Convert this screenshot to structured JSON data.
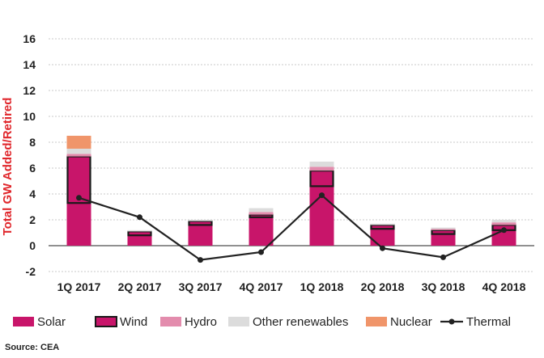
{
  "chart_data": {
    "type": "bar",
    "stacked": true,
    "ylabel": "Total GW Added/Retired",
    "ylim": [
      -2,
      16
    ],
    "yticks": [
      16,
      14,
      12,
      10,
      8,
      6,
      4,
      2,
      0,
      -2
    ],
    "grid": true,
    "legend_position": "bottom",
    "categories": [
      "1Q 2017",
      "2Q 2017",
      "3Q 2017",
      "4Q 2017",
      "1Q 2018",
      "2Q 2018",
      "3Q 2018",
      "4Q 2018"
    ],
    "series": [
      {
        "name": "Solar",
        "kind": "bar",
        "color": "#c8156a",
        "values": [
          3.3,
          0.8,
          1.6,
          2.2,
          4.6,
          1.3,
          0.9,
          1.2
        ]
      },
      {
        "name": "Wind",
        "kind": "bar",
        "color": "#c8156a",
        "outlined": true,
        "values": [
          3.6,
          0.3,
          0.3,
          0.2,
          1.2,
          0.3,
          0.3,
          0.4
        ]
      },
      {
        "name": "Hydro",
        "kind": "bar",
        "color": "#e38cad",
        "values": [
          0.2,
          0.0,
          0.0,
          0.2,
          0.3,
          0.0,
          0.1,
          0.2
        ]
      },
      {
        "name": "Other renewables",
        "kind": "bar",
        "color": "#dcdcdc",
        "values": [
          0.4,
          0.1,
          0.1,
          0.3,
          0.4,
          0.1,
          0.1,
          0.2
        ]
      },
      {
        "name": "Nuclear",
        "kind": "bar",
        "color": "#f0956a",
        "values": [
          1.0,
          0,
          0,
          0,
          0,
          0,
          0,
          0
        ]
      },
      {
        "name": "Thermal",
        "kind": "line",
        "color": "#222222",
        "values": [
          3.7,
          2.2,
          -1.1,
          -0.5,
          3.9,
          -0.2,
          -0.9,
          1.2
        ]
      }
    ]
  },
  "source_text": "Source: CEA",
  "colors": {
    "ylabel": "#e0262b",
    "grid": "#c8c8c8",
    "axis": "#222222"
  }
}
